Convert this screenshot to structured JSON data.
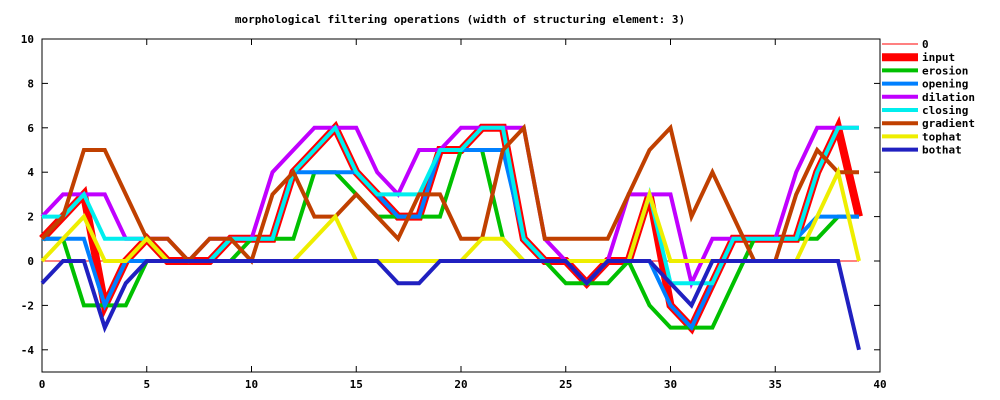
{
  "chart_data": {
    "type": "line",
    "title": "morphological filtering operations  (width of structuring element: 3)",
    "xlabel": "",
    "ylabel": "",
    "xlim": [
      0,
      40
    ],
    "ylim": [
      -5,
      10
    ],
    "x_ticks": [
      0,
      5,
      10,
      15,
      20,
      25,
      30,
      35,
      40
    ],
    "y_ticks": [
      -4,
      -2,
      0,
      2,
      4,
      6,
      8,
      10
    ],
    "grid": false,
    "legend_position": "right",
    "x": [
      0,
      1,
      2,
      3,
      4,
      5,
      6,
      7,
      8,
      9,
      10,
      11,
      12,
      13,
      14,
      15,
      16,
      17,
      18,
      19,
      20,
      21,
      22,
      23,
      24,
      25,
      26,
      27,
      28,
      29,
      30,
      31,
      32,
      33,
      34,
      35,
      36,
      37,
      38,
      39
    ],
    "series": [
      {
        "name": "0",
        "color": "#ff0000",
        "weight": "thin",
        "values": [
          0,
          0,
          0,
          0,
          0,
          0,
          0,
          0,
          0,
          0,
          0,
          0,
          0,
          0,
          0,
          0,
          0,
          0,
          0,
          0,
          0,
          0,
          0,
          0,
          0,
          0,
          0,
          0,
          0,
          0,
          0,
          0,
          0,
          0,
          0,
          0,
          0,
          0,
          0,
          0
        ]
      },
      {
        "name": "input",
        "color": "#ff0000",
        "weight": "heavy",
        "values": [
          1,
          2,
          3,
          -2,
          0,
          1,
          0,
          0,
          0,
          1,
          1,
          1,
          4,
          5,
          6,
          4,
          3,
          2,
          2,
          5,
          5,
          6,
          6,
          1,
          0,
          0,
          -1,
          0,
          0,
          3,
          -2,
          -3,
          -1,
          1,
          1,
          1,
          1,
          4,
          6,
          2
        ]
      },
      {
        "name": "erosion",
        "color": "#00c000",
        "weight": "normal",
        "values": [
          1,
          1,
          -2,
          -2,
          -2,
          0,
          0,
          0,
          0,
          0,
          1,
          1,
          1,
          4,
          4,
          3,
          2,
          2,
          2,
          2,
          5,
          5,
          1,
          0,
          0,
          -1,
          -1,
          -1,
          0,
          -2,
          -3,
          -3,
          -3,
          -1,
          1,
          1,
          1,
          1,
          2,
          2
        ]
      },
      {
        "name": "opening",
        "color": "#0080ff",
        "weight": "normal",
        "values": [
          1,
          1,
          1,
          -2,
          0,
          0,
          0,
          0,
          0,
          1,
          1,
          1,
          4,
          4,
          4,
          4,
          3,
          2,
          2,
          5,
          5,
          5,
          5,
          1,
          0,
          0,
          -1,
          0,
          0,
          0,
          -2,
          -3,
          -1,
          1,
          1,
          1,
          1,
          2,
          2,
          2
        ]
      },
      {
        "name": "dilation",
        "color": "#c000ff",
        "weight": "normal",
        "values": [
          2,
          3,
          3,
          3,
          1,
          1,
          1,
          0,
          1,
          1,
          1,
          4,
          5,
          6,
          6,
          6,
          4,
          3,
          5,
          5,
          6,
          6,
          6,
          6,
          1,
          0,
          0,
          0,
          3,
          3,
          3,
          -1,
          1,
          1,
          1,
          1,
          4,
          6,
          6,
          6
        ]
      },
      {
        "name": "closing",
        "color": "#00eeee",
        "weight": "normal",
        "values": [
          2,
          2,
          3,
          1,
          1,
          1,
          0,
          0,
          0,
          1,
          1,
          1,
          4,
          5,
          6,
          4,
          3,
          3,
          3,
          5,
          5,
          6,
          6,
          1,
          0,
          0,
          0,
          0,
          0,
          3,
          -1,
          -1,
          -1,
          1,
          1,
          1,
          1,
          4,
          6,
          6
        ]
      },
      {
        "name": "gradient",
        "color": "#c04000",
        "weight": "normal",
        "values": [
          1,
          2,
          5,
          5,
          3,
          1,
          1,
          0,
          1,
          1,
          0,
          3,
          4,
          2,
          2,
          3,
          2,
          1,
          3,
          3,
          1,
          1,
          5,
          6,
          1,
          1,
          1,
          1,
          3,
          5,
          6,
          2,
          4,
          2,
          0,
          0,
          3,
          5,
          4,
          4
        ]
      },
      {
        "name": "tophat",
        "color": "#eeee00",
        "weight": "normal",
        "values": [
          0,
          1,
          2,
          0,
          0,
          1,
          0,
          0,
          0,
          0,
          0,
          0,
          0,
          1,
          2,
          0,
          0,
          0,
          0,
          0,
          0,
          1,
          1,
          0,
          0,
          0,
          0,
          0,
          0,
          3,
          0,
          0,
          0,
          0,
          0,
          0,
          0,
          2,
          4,
          0
        ]
      },
      {
        "name": "bothat",
        "color": "#2020c0",
        "weight": "normal",
        "values": [
          -1,
          0,
          0,
          -3,
          -1,
          0,
          0,
          0,
          0,
          0,
          0,
          0,
          0,
          0,
          0,
          0,
          0,
          -1,
          -1,
          0,
          0,
          0,
          0,
          0,
          0,
          0,
          -1,
          0,
          0,
          0,
          -1,
          -2,
          0,
          0,
          0,
          0,
          0,
          0,
          0,
          -4
        ]
      }
    ]
  }
}
